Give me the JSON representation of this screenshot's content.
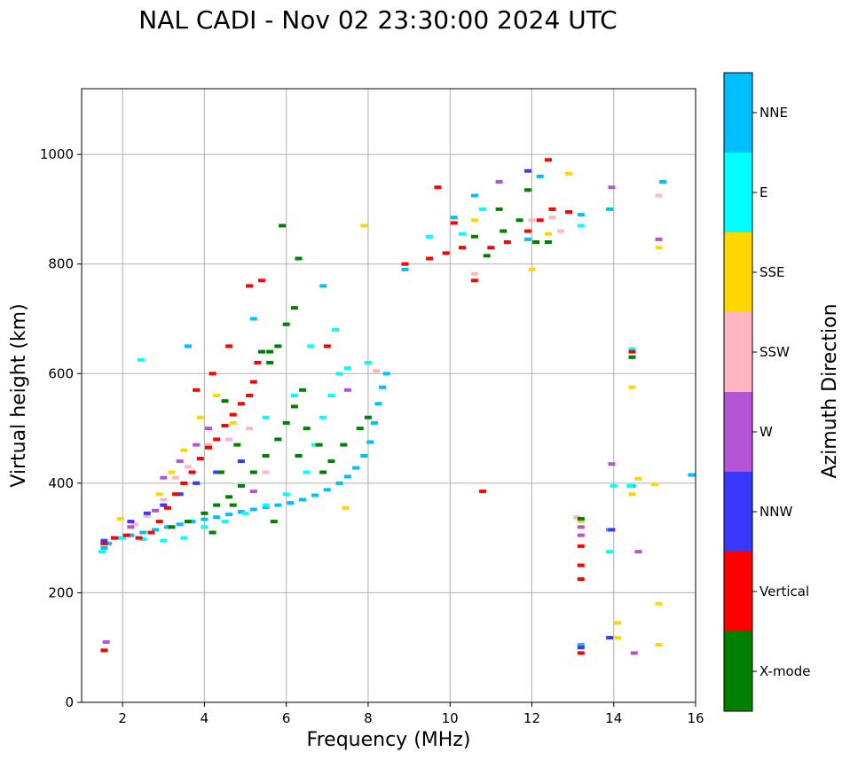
{
  "chart_data": {
    "type": "scatter",
    "title": "NAL CADI - Nov 02 23:30:00 2024 UTC",
    "xlabel": "Frequency (MHz)",
    "ylabel": "Virtual height (km)",
    "xlim": [
      1,
      16
    ],
    "ylim": [
      0,
      1120
    ],
    "xticks": [
      2,
      4,
      6,
      8,
      10,
      12,
      14,
      16
    ],
    "yticks": [
      0,
      200,
      400,
      600,
      800,
      1000
    ],
    "grid": true,
    "colorbar": {
      "label": "Azimuth Direction",
      "categories": [
        {
          "name": "X-mode",
          "color": "#008000"
        },
        {
          "name": "Vertical",
          "color": "#ff0000"
        },
        {
          "name": "NNW",
          "color": "#3838ff"
        },
        {
          "name": "W",
          "color": "#b455d6"
        },
        {
          "name": "SSW",
          "color": "#ffb6c1"
        },
        {
          "name": "SSE",
          "color": "#ffd700"
        },
        {
          "name": "E",
          "color": "#00ffff"
        },
        {
          "name": "NNE",
          "color": "#00bfff"
        }
      ]
    },
    "series": [
      {
        "name": "NNE",
        "points": [
          [
            1.55,
            282
          ],
          [
            1.65,
            290
          ],
          [
            1.9,
            300
          ],
          [
            2.2,
            305
          ],
          [
            2.5,
            310
          ],
          [
            2.8,
            315
          ],
          [
            3.1,
            320
          ],
          [
            3.4,
            325
          ],
          [
            3.7,
            330
          ],
          [
            4.0,
            334
          ],
          [
            4.3,
            338
          ],
          [
            4.6,
            343
          ],
          [
            4.9,
            348
          ],
          [
            5.2,
            352
          ],
          [
            5.5,
            356
          ],
          [
            5.8,
            360
          ],
          [
            6.1,
            364
          ],
          [
            6.4,
            370
          ],
          [
            6.7,
            378
          ],
          [
            7.0,
            388
          ],
          [
            7.3,
            400
          ],
          [
            7.5,
            412
          ],
          [
            7.7,
            428
          ],
          [
            7.9,
            450
          ],
          [
            8.05,
            475
          ],
          [
            8.15,
            510
          ],
          [
            8.25,
            545
          ],
          [
            8.35,
            575
          ],
          [
            8.45,
            600
          ],
          [
            3.6,
            650
          ],
          [
            5.2,
            700
          ],
          [
            6.9,
            760
          ],
          [
            8.9,
            790
          ],
          [
            10.1,
            885
          ],
          [
            10.6,
            925
          ],
          [
            11.9,
            845
          ],
          [
            12.2,
            960
          ],
          [
            13.2,
            890
          ],
          [
            13.9,
            900
          ],
          [
            14.45,
            640
          ],
          [
            14.45,
            395
          ],
          [
            15.2,
            950
          ],
          [
            15.9,
            415
          ],
          [
            13.2,
            105
          ],
          [
            13.9,
            315
          ]
        ]
      },
      {
        "name": "E",
        "points": [
          [
            1.5,
            275
          ],
          [
            2.0,
            300
          ],
          [
            2.5,
            298
          ],
          [
            3.0,
            295
          ],
          [
            3.5,
            300
          ],
          [
            4.0,
            320
          ],
          [
            4.5,
            330
          ],
          [
            5.0,
            345
          ],
          [
            5.5,
            360
          ],
          [
            6.0,
            380
          ],
          [
            6.5,
            420
          ],
          [
            6.7,
            470
          ],
          [
            6.9,
            520
          ],
          [
            7.1,
            560
          ],
          [
            7.3,
            600
          ],
          [
            7.5,
            610
          ],
          [
            8.0,
            620
          ],
          [
            2.45,
            625
          ],
          [
            5.5,
            520
          ],
          [
            6.2,
            560
          ],
          [
            6.6,
            650
          ],
          [
            7.2,
            680
          ],
          [
            9.5,
            850
          ],
          [
            10.3,
            855
          ],
          [
            10.8,
            900
          ],
          [
            13.2,
            870
          ],
          [
            13.9,
            275
          ],
          [
            14.0,
            395
          ],
          [
            14.4,
            395
          ],
          [
            14.45,
            645
          ]
        ]
      },
      {
        "name": "SSE",
        "points": [
          [
            1.95,
            335
          ],
          [
            2.9,
            380
          ],
          [
            3.2,
            420
          ],
          [
            3.5,
            460
          ],
          [
            3.9,
            520
          ],
          [
            4.3,
            560
          ],
          [
            4.7,
            510
          ],
          [
            7.45,
            355
          ],
          [
            7.9,
            870
          ],
          [
            10.6,
            880
          ],
          [
            12.0,
            790
          ],
          [
            12.4,
            855
          ],
          [
            12.9,
            965
          ],
          [
            13.2,
            330
          ],
          [
            14.1,
            145
          ],
          [
            14.1,
            118
          ],
          [
            14.45,
            575
          ],
          [
            14.45,
            380
          ],
          [
            14.6,
            408
          ],
          [
            15.0,
            398
          ],
          [
            15.1,
            180
          ],
          [
            15.1,
            105
          ],
          [
            15.1,
            830
          ]
        ]
      },
      {
        "name": "SSW",
        "points": [
          [
            2.3,
            325
          ],
          [
            2.6,
            340
          ],
          [
            3.0,
            370
          ],
          [
            3.3,
            410
          ],
          [
            3.6,
            430
          ],
          [
            4.1,
            470
          ],
          [
            4.6,
            480
          ],
          [
            5.1,
            500
          ],
          [
            5.5,
            420
          ],
          [
            8.2,
            605
          ],
          [
            10.6,
            782
          ],
          [
            12.0,
            880
          ],
          [
            12.5,
            885
          ],
          [
            12.7,
            860
          ],
          [
            13.1,
            338
          ],
          [
            15.1,
            925
          ]
        ]
      },
      {
        "name": "W",
        "points": [
          [
            1.6,
            110
          ],
          [
            2.2,
            320
          ],
          [
            2.8,
            350
          ],
          [
            3.0,
            410
          ],
          [
            3.4,
            440
          ],
          [
            3.8,
            470
          ],
          [
            4.1,
            500
          ],
          [
            5.2,
            385
          ],
          [
            7.5,
            570
          ],
          [
            11.2,
            950
          ],
          [
            13.2,
            320
          ],
          [
            13.2,
            305
          ],
          [
            13.95,
            435
          ],
          [
            13.95,
            940
          ],
          [
            14.5,
            90
          ],
          [
            14.6,
            275
          ],
          [
            15.1,
            845
          ]
        ]
      },
      {
        "name": "NNW",
        "points": [
          [
            1.55,
            295
          ],
          [
            2.2,
            330
          ],
          [
            2.6,
            345
          ],
          [
            3.0,
            360
          ],
          [
            3.4,
            380
          ],
          [
            3.8,
            400
          ],
          [
            4.3,
            420
          ],
          [
            4.9,
            440
          ],
          [
            11.9,
            970
          ],
          [
            13.2,
            100
          ],
          [
            13.9,
            118
          ],
          [
            13.95,
            315
          ]
        ]
      },
      {
        "name": "Vertical",
        "points": [
          [
            1.55,
            95
          ],
          [
            1.55,
            290
          ],
          [
            1.8,
            300
          ],
          [
            2.1,
            305
          ],
          [
            2.4,
            300
          ],
          [
            2.7,
            310
          ],
          [
            2.9,
            330
          ],
          [
            3.1,
            355
          ],
          [
            3.3,
            380
          ],
          [
            3.5,
            400
          ],
          [
            3.7,
            420
          ],
          [
            3.9,
            445
          ],
          [
            4.1,
            465
          ],
          [
            4.3,
            480
          ],
          [
            4.5,
            505
          ],
          [
            4.7,
            525
          ],
          [
            4.9,
            545
          ],
          [
            5.1,
            560
          ],
          [
            5.2,
            585
          ],
          [
            5.3,
            620
          ],
          [
            5.1,
            760
          ],
          [
            3.8,
            570
          ],
          [
            4.2,
            600
          ],
          [
            4.6,
            650
          ],
          [
            5.4,
            770
          ],
          [
            7.0,
            650
          ],
          [
            8.9,
            800
          ],
          [
            9.5,
            810
          ],
          [
            9.9,
            820
          ],
          [
            10.3,
            830
          ],
          [
            10.6,
            770
          ],
          [
            11.0,
            830
          ],
          [
            11.4,
            840
          ],
          [
            11.9,
            860
          ],
          [
            12.2,
            880
          ],
          [
            12.5,
            900
          ],
          [
            12.9,
            895
          ],
          [
            13.2,
            285
          ],
          [
            13.2,
            250
          ],
          [
            13.2,
            225
          ],
          [
            13.2,
            90
          ],
          [
            14.45,
            640
          ],
          [
            9.7,
            940
          ],
          [
            10.1,
            875
          ],
          [
            10.8,
            385
          ],
          [
            12.4,
            990
          ]
        ]
      },
      {
        "name": "X-mode",
        "points": [
          [
            3.2,
            320
          ],
          [
            3.6,
            330
          ],
          [
            4.0,
            345
          ],
          [
            4.3,
            360
          ],
          [
            4.6,
            375
          ],
          [
            4.9,
            395
          ],
          [
            5.2,
            420
          ],
          [
            5.5,
            450
          ],
          [
            5.8,
            480
          ],
          [
            6.0,
            510
          ],
          [
            6.2,
            540
          ],
          [
            6.4,
            570
          ],
          [
            5.6,
            620
          ],
          [
            5.8,
            650
          ],
          [
            6.0,
            690
          ],
          [
            6.2,
            720
          ],
          [
            6.5,
            500
          ],
          [
            6.8,
            470
          ],
          [
            7.1,
            440
          ],
          [
            7.4,
            470
          ],
          [
            7.8,
            500
          ],
          [
            8.0,
            520
          ],
          [
            6.9,
            420
          ],
          [
            6.3,
            450
          ],
          [
            5.7,
            330
          ],
          [
            4.7,
            360
          ],
          [
            4.2,
            310
          ],
          [
            4.4,
            420
          ],
          [
            4.8,
            470
          ],
          [
            5.4,
            640
          ],
          [
            5.9,
            870
          ],
          [
            5.6,
            640
          ],
          [
            6.3,
            810
          ],
          [
            4.5,
            550
          ],
          [
            10.6,
            850
          ],
          [
            10.9,
            815
          ],
          [
            11.3,
            860
          ],
          [
            11.7,
            880
          ],
          [
            12.1,
            840
          ],
          [
            12.4,
            840
          ],
          [
            13.2,
            335
          ],
          [
            14.45,
            630
          ],
          [
            11.2,
            900
          ],
          [
            11.9,
            935
          ]
        ]
      }
    ]
  }
}
